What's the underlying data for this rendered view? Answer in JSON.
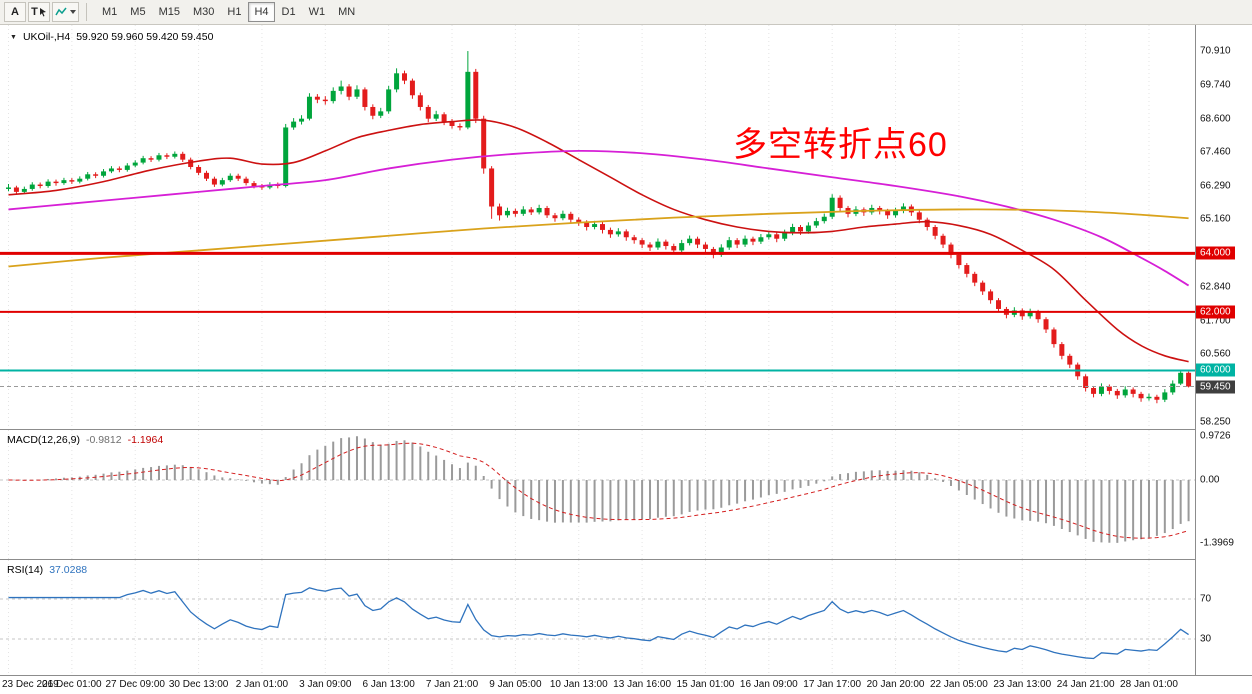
{
  "toolbar": {
    "font_label": "A",
    "text_label": "T",
    "timeframes": [
      "M1",
      "M5",
      "M15",
      "M30",
      "H1",
      "H4",
      "D1",
      "W1",
      "MN"
    ],
    "active_timeframe": "H4"
  },
  "main_pane": {
    "symbol_timeframe": "UKOil-,H4",
    "ohlc": "59.920 59.960 59.420 59.450",
    "y_axis_labels": [
      {
        "value": 70.91,
        "label": "70.910"
      },
      {
        "value": 69.74,
        "label": "69.740"
      },
      {
        "value": 68.6,
        "label": "68.600"
      },
      {
        "value": 67.46,
        "label": "67.460"
      },
      {
        "value": 66.29,
        "label": "66.290"
      },
      {
        "value": 65.16,
        "label": "65.160"
      },
      {
        "value": 62.84,
        "label": "62.840"
      },
      {
        "value": 61.7,
        "label": "61.700"
      },
      {
        "value": 60.56,
        "label": "60.560"
      },
      {
        "value": 58.25,
        "label": "58.250"
      }
    ],
    "hlines": [
      {
        "price": 64.0,
        "label": "64.000",
        "color": "#e00000",
        "width": 3
      },
      {
        "price": 62.0,
        "label": "62.000",
        "color": "#e00000",
        "width": 2
      },
      {
        "price": 60.0,
        "label": "60.000",
        "color": "#00b3a3",
        "width": 2
      }
    ],
    "current_price": {
      "value": 59.45,
      "label": "59.450",
      "line_color": "#9a9a9a",
      "tag_color": "#3f3f3f"
    }
  },
  "annotation": {
    "text": "多空转折点60",
    "color": "#ff0000"
  },
  "macd_pane": {
    "label": "MACD(12,26,9)",
    "value_main": "-0.9812",
    "value_signal": "-1.1964",
    "axis_labels": [
      {
        "value": 0.9726,
        "label": "0.9726"
      },
      {
        "value": 0,
        "label": "0.00"
      },
      {
        "value": -1.3969,
        "label": "-1.3969"
      }
    ]
  },
  "rsi_pane": {
    "label": "RSI(14)",
    "value": "37.0288",
    "levels": [
      {
        "value": 70,
        "label": "70"
      },
      {
        "value": 30,
        "label": "30"
      }
    ]
  },
  "time_axis": [
    {
      "i": 0,
      "label": "23 Dec 2019"
    },
    {
      "i": 8,
      "label": "26 Dec 01:00"
    },
    {
      "i": 16,
      "label": "27 Dec 09:00"
    },
    {
      "i": 24,
      "label": "30 Dec 13:00"
    },
    {
      "i": 32,
      "label": "2 Jan 01:00"
    },
    {
      "i": 40,
      "label": "3 Jan 09:00"
    },
    {
      "i": 48,
      "label": "6 Jan 13:00"
    },
    {
      "i": 56,
      "label": "7 Jan 21:00"
    },
    {
      "i": 64,
      "label": "9 Jan 05:00"
    },
    {
      "i": 72,
      "label": "10 Jan 13:00"
    },
    {
      "i": 80,
      "label": "13 Jan 16:00"
    },
    {
      "i": 88,
      "label": "15 Jan 01:00"
    },
    {
      "i": 96,
      "label": "16 Jan 09:00"
    },
    {
      "i": 104,
      "label": "17 Jan 17:00"
    },
    {
      "i": 112,
      "label": "20 Jan 20:00"
    },
    {
      "i": 120,
      "label": "22 Jan 05:00"
    },
    {
      "i": 128,
      "label": "23 Jan 13:00"
    },
    {
      "i": 136,
      "label": "24 Jan 21:00"
    },
    {
      "i": 144,
      "label": "28 Jan 01:00"
    }
  ],
  "colors": {
    "bull": "#00a53c",
    "bear": "#e31c1c",
    "grid": "#e4e4e4",
    "macd_hist": "#9a9a9a",
    "macd_signal": "#d42020",
    "rsi_line": "#2f73be",
    "level_dash": "#c4c4c4"
  },
  "chart_data": {
    "type": "candlestick",
    "symbol": "UKOil-",
    "timeframe": "H4",
    "price_range": [
      58.25,
      70.91
    ],
    "candles": [
      [
        66.2,
        66.37,
        66.12,
        66.25
      ],
      [
        66.25,
        66.31,
        66.02,
        66.1
      ],
      [
        66.1,
        66.28,
        66.04,
        66.2
      ],
      [
        66.2,
        66.43,
        66.14,
        66.35
      ],
      [
        66.35,
        66.42,
        66.22,
        66.3
      ],
      [
        66.3,
        66.53,
        66.24,
        66.45
      ],
      [
        66.45,
        66.52,
        66.31,
        66.4
      ],
      [
        66.4,
        66.58,
        66.34,
        66.5
      ],
      [
        66.5,
        66.57,
        66.37,
        66.45
      ],
      [
        66.45,
        66.63,
        66.39,
        66.55
      ],
      [
        66.55,
        66.78,
        66.49,
        66.7
      ],
      [
        66.7,
        66.77,
        66.57,
        66.65
      ],
      [
        66.65,
        66.88,
        66.59,
        66.8
      ],
      [
        66.8,
        66.98,
        66.74,
        66.9
      ],
      [
        66.9,
        66.97,
        66.77,
        66.85
      ],
      [
        66.85,
        67.08,
        66.79,
        67.0
      ],
      [
        67.0,
        67.18,
        66.94,
        67.1
      ],
      [
        67.1,
        67.33,
        67.04,
        67.25
      ],
      [
        67.25,
        67.32,
        67.12,
        67.2
      ],
      [
        67.2,
        67.43,
        67.14,
        67.35
      ],
      [
        67.35,
        67.42,
        67.22,
        67.3
      ],
      [
        67.3,
        67.48,
        67.24,
        67.4
      ],
      [
        67.4,
        67.47,
        67.12,
        67.2
      ],
      [
        67.2,
        67.27,
        66.87,
        66.95
      ],
      [
        66.95,
        67.02,
        66.67,
        66.75
      ],
      [
        66.75,
        66.82,
        66.47,
        66.55
      ],
      [
        66.55,
        66.62,
        66.27,
        66.35
      ],
      [
        66.35,
        66.58,
        66.29,
        66.5
      ],
      [
        66.5,
        66.73,
        66.44,
        66.65
      ],
      [
        66.65,
        66.72,
        66.47,
        66.55
      ],
      [
        66.55,
        66.62,
        66.32,
        66.4
      ],
      [
        66.4,
        66.47,
        66.22,
        66.3
      ],
      [
        66.3,
        66.37,
        66.17,
        66.25
      ],
      [
        66.25,
        66.43,
        66.19,
        66.35
      ],
      [
        66.35,
        66.42,
        66.22,
        66.3
      ],
      [
        66.3,
        68.42,
        66.25,
        68.3
      ],
      [
        68.3,
        68.62,
        68.22,
        68.5
      ],
      [
        68.5,
        68.72,
        68.4,
        68.6
      ],
      [
        68.6,
        69.47,
        68.54,
        69.35
      ],
      [
        69.35,
        69.44,
        69.13,
        69.25
      ],
      [
        69.25,
        69.37,
        69.08,
        69.2
      ],
      [
        69.2,
        69.67,
        69.12,
        69.55
      ],
      [
        69.55,
        69.9,
        69.43,
        69.7
      ],
      [
        69.7,
        69.78,
        69.23,
        69.35
      ],
      [
        69.35,
        69.74,
        69.27,
        69.6
      ],
      [
        69.6,
        69.67,
        68.88,
        69.0
      ],
      [
        69.0,
        69.09,
        68.58,
        68.7
      ],
      [
        68.7,
        68.97,
        68.62,
        68.85
      ],
      [
        68.85,
        69.72,
        68.77,
        69.6
      ],
      [
        69.6,
        70.32,
        69.5,
        70.15
      ],
      [
        70.15,
        70.24,
        69.78,
        69.9
      ],
      [
        69.9,
        69.97,
        69.28,
        69.4
      ],
      [
        69.4,
        69.49,
        68.88,
        69.0
      ],
      [
        69.0,
        69.07,
        68.48,
        68.6
      ],
      [
        68.6,
        68.87,
        68.52,
        68.75
      ],
      [
        68.75,
        68.82,
        68.38,
        68.5
      ],
      [
        68.5,
        68.59,
        68.26,
        68.35
      ],
      [
        68.35,
        68.44,
        68.2,
        68.3
      ],
      [
        68.3,
        70.91,
        68.24,
        70.2
      ],
      [
        70.2,
        70.3,
        68.45,
        68.6
      ],
      [
        68.6,
        68.7,
        66.72,
        66.9
      ],
      [
        66.9,
        66.98,
        65.18,
        65.6
      ],
      [
        65.6,
        65.7,
        65.12,
        65.3
      ],
      [
        65.3,
        65.56,
        65.22,
        65.45
      ],
      [
        65.45,
        65.53,
        65.25,
        65.35
      ],
      [
        65.35,
        65.61,
        65.28,
        65.5
      ],
      [
        65.5,
        65.58,
        65.31,
        65.4
      ],
      [
        65.4,
        65.66,
        65.33,
        65.55
      ],
      [
        65.55,
        65.62,
        65.21,
        65.3
      ],
      [
        65.3,
        65.38,
        65.08,
        65.2
      ],
      [
        65.2,
        65.46,
        65.13,
        65.35
      ],
      [
        65.35,
        65.42,
        65.04,
        65.15
      ],
      [
        65.15,
        65.23,
        64.94,
        65.05
      ],
      [
        65.05,
        65.13,
        64.78,
        64.9
      ],
      [
        64.9,
        65.11,
        64.82,
        65.0
      ],
      [
        65.0,
        65.07,
        64.68,
        64.8
      ],
      [
        64.8,
        64.88,
        64.53,
        64.65
      ],
      [
        64.65,
        64.86,
        64.57,
        64.75
      ],
      [
        64.75,
        64.82,
        64.43,
        64.55
      ],
      [
        64.55,
        64.63,
        64.33,
        64.45
      ],
      [
        64.45,
        64.52,
        64.18,
        64.3
      ],
      [
        64.3,
        64.38,
        64.08,
        64.2
      ],
      [
        64.2,
        64.51,
        64.12,
        64.4
      ],
      [
        64.4,
        64.47,
        64.13,
        64.25
      ],
      [
        64.25,
        64.33,
        63.98,
        64.1
      ],
      [
        64.1,
        64.46,
        64.02,
        64.35
      ],
      [
        64.35,
        64.61,
        64.27,
        64.5
      ],
      [
        64.5,
        64.57,
        64.18,
        64.3
      ],
      [
        64.3,
        64.38,
        64.03,
        64.15
      ],
      [
        64.15,
        64.22,
        63.83,
        63.95
      ],
      [
        63.95,
        64.31,
        63.88,
        64.2
      ],
      [
        64.2,
        64.56,
        64.12,
        64.45
      ],
      [
        64.45,
        64.52,
        64.18,
        64.3
      ],
      [
        64.3,
        64.61,
        64.22,
        64.5
      ],
      [
        64.5,
        64.57,
        64.28,
        64.4
      ],
      [
        64.4,
        64.66,
        64.32,
        64.55
      ],
      [
        64.55,
        64.76,
        64.47,
        64.65
      ],
      [
        64.65,
        64.72,
        64.38,
        64.5
      ],
      [
        64.5,
        64.81,
        64.42,
        64.7
      ],
      [
        64.7,
        65.01,
        64.62,
        64.9
      ],
      [
        64.9,
        64.97,
        64.63,
        64.75
      ],
      [
        64.75,
        65.06,
        64.67,
        64.95
      ],
      [
        64.95,
        65.21,
        64.87,
        65.1
      ],
      [
        65.1,
        65.36,
        65.02,
        65.25
      ],
      [
        65.25,
        66.02,
        65.17,
        65.9
      ],
      [
        65.9,
        65.98,
        65.43,
        65.55
      ],
      [
        65.55,
        65.62,
        65.23,
        65.35
      ],
      [
        65.35,
        65.61,
        65.27,
        65.5
      ],
      [
        65.5,
        65.57,
        65.28,
        65.4
      ],
      [
        65.4,
        65.66,
        65.32,
        65.55
      ],
      [
        65.55,
        65.62,
        65.33,
        65.45
      ],
      [
        65.45,
        65.52,
        65.18,
        65.3
      ],
      [
        65.3,
        65.56,
        65.22,
        65.45
      ],
      [
        65.45,
        65.71,
        65.37,
        65.6
      ],
      [
        65.6,
        65.67,
        65.28,
        65.4
      ],
      [
        65.4,
        65.47,
        65.03,
        65.15
      ],
      [
        65.15,
        65.22,
        64.78,
        64.9
      ],
      [
        64.9,
        64.97,
        64.48,
        64.6
      ],
      [
        64.6,
        64.67,
        64.18,
        64.3
      ],
      [
        64.3,
        64.37,
        63.83,
        63.95
      ],
      [
        63.95,
        64.02,
        63.48,
        63.6
      ],
      [
        63.6,
        63.67,
        63.18,
        63.3
      ],
      [
        63.3,
        63.37,
        62.88,
        63.0
      ],
      [
        63.0,
        63.07,
        62.58,
        62.7
      ],
      [
        62.7,
        62.77,
        62.28,
        62.4
      ],
      [
        62.4,
        62.47,
        61.98,
        62.1
      ],
      [
        62.1,
        62.17,
        61.78,
        61.9
      ],
      [
        61.9,
        62.16,
        61.82,
        62.05
      ],
      [
        62.05,
        62.12,
        61.73,
        61.85
      ],
      [
        61.85,
        62.11,
        61.77,
        62.0
      ],
      [
        62.0,
        62.07,
        61.63,
        61.75
      ],
      [
        61.75,
        61.82,
        61.28,
        61.4
      ],
      [
        61.4,
        61.47,
        60.78,
        60.9
      ],
      [
        60.9,
        60.97,
        60.38,
        60.5
      ],
      [
        60.5,
        60.57,
        60.08,
        60.2
      ],
      [
        60.2,
        60.27,
        59.68,
        59.8
      ],
      [
        59.8,
        59.87,
        59.28,
        59.4
      ],
      [
        59.4,
        59.47,
        59.08,
        59.2
      ],
      [
        59.2,
        59.56,
        59.12,
        59.45
      ],
      [
        59.45,
        59.52,
        59.18,
        59.3
      ],
      [
        59.3,
        59.37,
        59.03,
        59.15
      ],
      [
        59.15,
        59.46,
        59.07,
        59.35
      ],
      [
        59.35,
        59.42,
        59.08,
        59.2
      ],
      [
        59.2,
        59.27,
        58.93,
        59.05
      ],
      [
        59.05,
        59.21,
        58.97,
        59.1
      ],
      [
        59.1,
        59.17,
        58.88,
        59.0
      ],
      [
        59.0,
        59.36,
        58.92,
        59.25
      ],
      [
        59.25,
        59.66,
        59.17,
        59.55
      ],
      [
        59.55,
        59.98,
        59.5,
        59.92
      ],
      [
        59.92,
        59.96,
        59.42,
        59.45
      ]
    ],
    "moving_averages": [
      {
        "name": "ma-fast-red-line",
        "color": "#cc1111",
        "width": 1.6,
        "points": [
          [
            0,
            66.0
          ],
          [
            6,
            66.15
          ],
          [
            12,
            66.45
          ],
          [
            18,
            66.85
          ],
          [
            24,
            67.15
          ],
          [
            28,
            67.25
          ],
          [
            32,
            67.05
          ],
          [
            36,
            67.1
          ],
          [
            40,
            67.5
          ],
          [
            44,
            67.95
          ],
          [
            48,
            68.2
          ],
          [
            52,
            68.4
          ],
          [
            56,
            68.5
          ],
          [
            60,
            68.55
          ],
          [
            64,
            68.3
          ],
          [
            68,
            67.8
          ],
          [
            72,
            67.2
          ],
          [
            76,
            66.6
          ],
          [
            80,
            66.0
          ],
          [
            84,
            65.5
          ],
          [
            88,
            65.15
          ],
          [
            92,
            64.9
          ],
          [
            96,
            64.75
          ],
          [
            100,
            64.7
          ],
          [
            104,
            64.75
          ],
          [
            108,
            64.9
          ],
          [
            112,
            65.0
          ],
          [
            116,
            65.08
          ],
          [
            120,
            64.95
          ],
          [
            124,
            64.65
          ],
          [
            128,
            64.1
          ],
          [
            132,
            63.45
          ],
          [
            136,
            62.4
          ],
          [
            140,
            61.4
          ],
          [
            143,
            60.85
          ],
          [
            146,
            60.5
          ],
          [
            149,
            60.3
          ]
        ]
      },
      {
        "name": "ma-mid-magenta-line",
        "color": "#d61fd6",
        "width": 1.8,
        "points": [
          [
            0,
            65.5
          ],
          [
            8,
            65.7
          ],
          [
            16,
            65.9
          ],
          [
            24,
            66.1
          ],
          [
            32,
            66.3
          ],
          [
            40,
            66.5
          ],
          [
            48,
            66.9
          ],
          [
            56,
            67.2
          ],
          [
            64,
            67.4
          ],
          [
            72,
            67.5
          ],
          [
            80,
            67.42
          ],
          [
            88,
            67.2
          ],
          [
            96,
            66.9
          ],
          [
            104,
            66.6
          ],
          [
            112,
            66.3
          ],
          [
            120,
            65.95
          ],
          [
            126,
            65.6
          ],
          [
            132,
            65.15
          ],
          [
            138,
            64.55
          ],
          [
            143,
            63.85
          ],
          [
            146,
            63.4
          ],
          [
            149,
            62.9
          ]
        ]
      },
      {
        "name": "ma-slow-orange-line",
        "color": "#d9a21b",
        "width": 1.8,
        "points": [
          [
            0,
            63.55
          ],
          [
            12,
            63.85
          ],
          [
            24,
            64.1
          ],
          [
            36,
            64.35
          ],
          [
            48,
            64.6
          ],
          [
            60,
            64.85
          ],
          [
            72,
            65.05
          ],
          [
            84,
            65.22
          ],
          [
            96,
            65.35
          ],
          [
            108,
            65.45
          ],
          [
            120,
            65.5
          ],
          [
            130,
            65.48
          ],
          [
            138,
            65.4
          ],
          [
            144,
            65.3
          ],
          [
            149,
            65.2
          ]
        ]
      }
    ],
    "indicators": {
      "macd": {
        "params": "12,26,9",
        "current_main": -0.9812,
        "current_signal": -1.1964,
        "axis_max": 0.9726,
        "axis_min": -1.3969
      },
      "rsi": {
        "params": "14",
        "current": 37.0288,
        "levels": [
          70,
          30
        ]
      }
    }
  }
}
